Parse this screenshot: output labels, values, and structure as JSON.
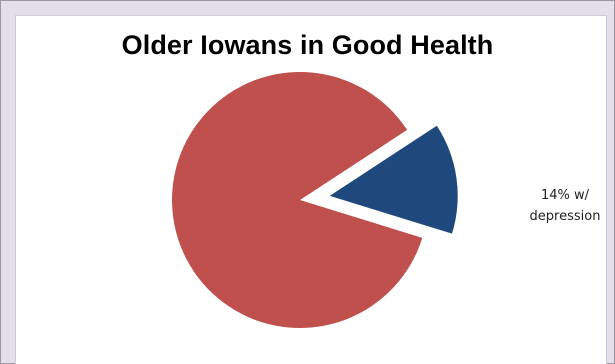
{
  "chart_data": {
    "type": "pie",
    "title": "Older Iowans in Good Health",
    "slices": [
      {
        "label": "",
        "value": 86,
        "color": "#c0504d",
        "exploded": false
      },
      {
        "label": "14% w/ depression",
        "value": 14,
        "color": "#1f497d",
        "exploded": true
      }
    ],
    "data_labels": [
      "",
      "14% w/\ndepression"
    ],
    "legend": false
  },
  "colors": {
    "background": "#e4e0e9",
    "plot_background": "#ffffff"
  }
}
